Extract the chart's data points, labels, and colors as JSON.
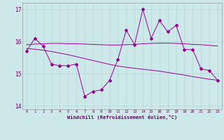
{
  "xlabel": "Windchill (Refroidissement éolien,°C)",
  "x": [
    0,
    1,
    2,
    3,
    4,
    5,
    6,
    7,
    8,
    9,
    10,
    11,
    12,
    13,
    14,
    15,
    16,
    17,
    18,
    19,
    20,
    21,
    22,
    23
  ],
  "y_main": [
    15.7,
    16.1,
    15.85,
    15.3,
    15.25,
    15.25,
    15.3,
    14.3,
    14.45,
    14.5,
    14.8,
    15.45,
    16.35,
    15.9,
    17.0,
    16.1,
    16.65,
    16.3,
    16.5,
    15.75,
    15.75,
    15.15,
    15.1,
    14.8
  ],
  "y_smooth1": [
    15.9,
    15.92,
    15.93,
    15.94,
    15.94,
    15.93,
    15.93,
    15.92,
    15.91,
    15.9,
    15.89,
    15.89,
    15.9,
    15.91,
    15.93,
    15.94,
    15.95,
    15.95,
    15.94,
    15.93,
    15.91,
    15.9,
    15.88,
    15.86
  ],
  "y_smooth2": [
    15.78,
    15.76,
    15.73,
    15.69,
    15.64,
    15.59,
    15.53,
    15.47,
    15.41,
    15.35,
    15.29,
    15.24,
    15.2,
    15.17,
    15.14,
    15.11,
    15.08,
    15.04,
    15.0,
    14.96,
    14.91,
    14.87,
    14.83,
    14.8
  ],
  "ylim": [
    13.9,
    17.2
  ],
  "yticks": [
    14,
    15,
    16,
    17
  ],
  "line_color": "#990099",
  "bg_color": "#cce8e8",
  "grid_color": "#b0d8d8",
  "tick_label_color": "#660066",
  "axes_color": "#999999"
}
